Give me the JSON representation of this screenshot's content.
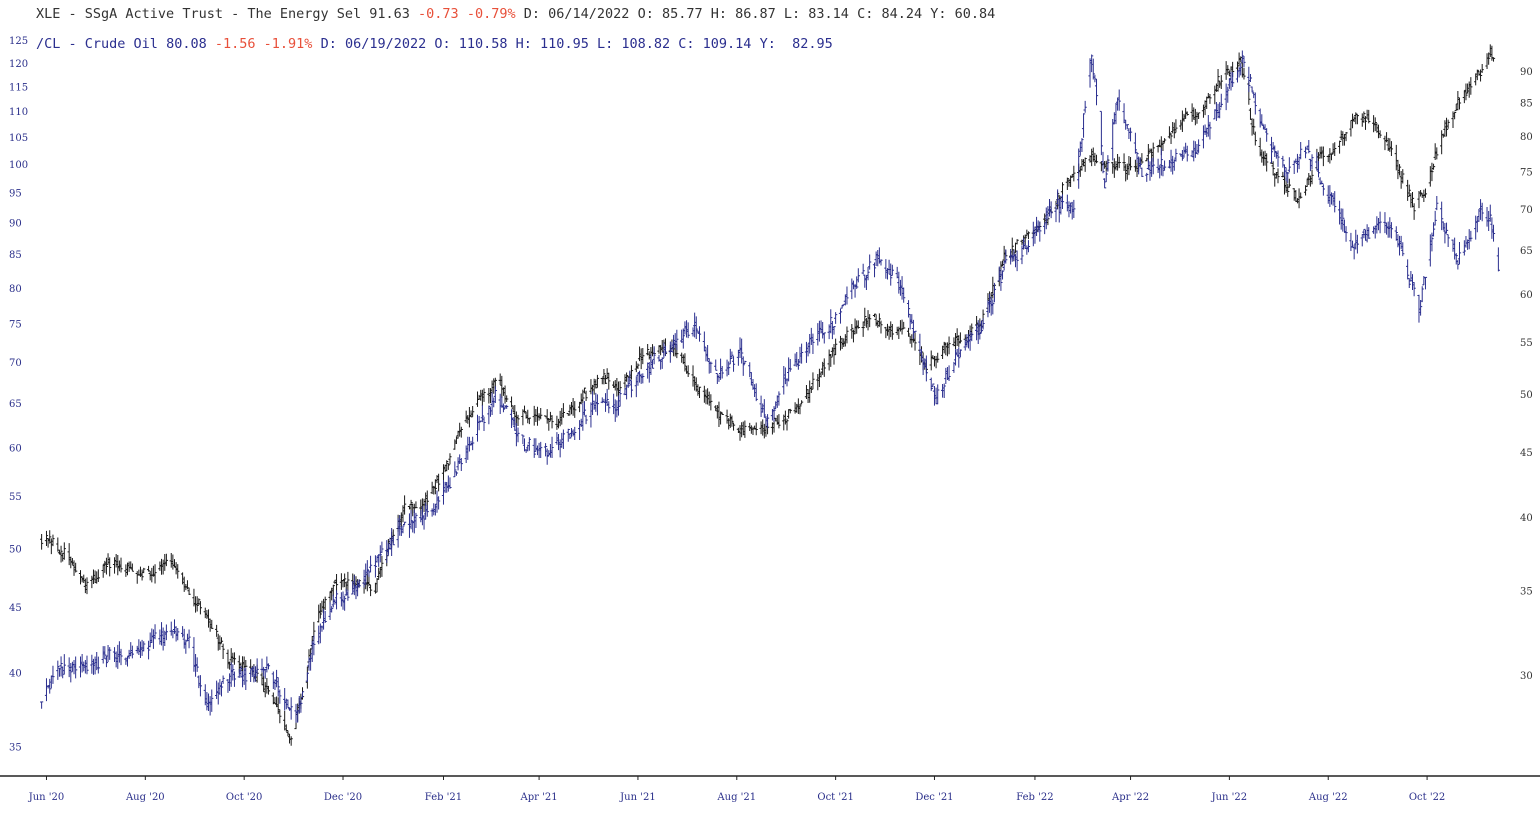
{
  "chart_data": {
    "type": "bar",
    "subtype": "ohlc",
    "legend": {
      "xle": {
        "symbol": "XLE",
        "name_prefix": "SSgA Active Trust - The Energy Sel",
        "last": "91.63",
        "change": "-0.73",
        "change_pct": "-0.79%",
        "date": "D: 06/14/2022",
        "open": "O: 85.77",
        "high": "H: 86.87",
        "low": "L: 83.14",
        "close": "C: 84.24",
        "y": "Y: 60.84"
      },
      "cl": {
        "symbol": "/CL",
        "name_prefix": "Crude Oil",
        "last": "80.08",
        "change": "-1.56",
        "change_pct": "-1.91%",
        "date": "D: 06/19/2022",
        "open": "O: 110.58",
        "high": "H: 110.95",
        "low": "L: 108.82",
        "close": "C: 109.14",
        "y": "Y:  82.95"
      }
    },
    "left_axis": {
      "scale": "log",
      "series": "/CL",
      "range": [
        33.5,
        128
      ],
      "ticks": [
        "125",
        "120",
        "115",
        "110",
        "105",
        "100",
        "95",
        "90",
        "85",
        "80",
        "75",
        "70",
        "65",
        "60",
        "55",
        "50",
        "45",
        "40",
        "35"
      ]
    },
    "right_axis": {
      "scale": "log",
      "series": "XLE",
      "range": [
        25.2,
        97.5
      ],
      "ticks": [
        "90",
        "85",
        "80",
        "75",
        "70",
        "65",
        "60",
        "55",
        "50",
        "45",
        "40",
        "35",
        "30"
      ]
    },
    "x_axis": {
      "ticks": [
        "Jun '20",
        "Aug '20",
        "Oct '20",
        "Dec '20",
        "Feb '21",
        "Apr '21",
        "Jun '21",
        "Aug '21",
        "Oct '21",
        "Dec '21",
        "Feb '22",
        "Apr '22",
        "Jun '22",
        "Aug '22",
        "Oct '22"
      ],
      "tick_dates": [
        "2020-06-01",
        "2020-08-01",
        "2020-10-01",
        "2020-12-01",
        "2021-02-01",
        "2021-04-01",
        "2021-06-01",
        "2021-08-01",
        "2021-10-01",
        "2021-12-01",
        "2022-02-01",
        "2022-04-01",
        "2022-06-01",
        "2022-08-01",
        "2022-10-01"
      ],
      "range": [
        "2020-05-28",
        "2022-11-15"
      ]
    },
    "series": [
      {
        "name": "XLE",
        "color": "#1a1a1a",
        "axis": "right",
        "points": [
          [
            "2020-05-29",
            38.6
          ],
          [
            "2020-06-08",
            37.9
          ],
          [
            "2020-06-16",
            37.0
          ],
          [
            "2020-06-25",
            35.2
          ],
          [
            "2020-07-08",
            36.7
          ],
          [
            "2020-07-22",
            36.5
          ],
          [
            "2020-08-05",
            36.2
          ],
          [
            "2020-08-14",
            37.2
          ],
          [
            "2020-08-28",
            34.8
          ],
          [
            "2020-09-08",
            33.6
          ],
          [
            "2020-09-21",
            30.8
          ],
          [
            "2020-10-01",
            30.6
          ],
          [
            "2020-10-15",
            29.3
          ],
          [
            "2020-10-30",
            26.6
          ],
          [
            "2020-11-06",
            29.2
          ],
          [
            "2020-11-16",
            33.5
          ],
          [
            "2020-11-26",
            35.6
          ],
          [
            "2020-12-07",
            35.4
          ],
          [
            "2020-12-21",
            35.3
          ],
          [
            "2021-01-08",
            41.0
          ],
          [
            "2021-01-19",
            40.8
          ],
          [
            "2021-02-01",
            43.6
          ],
          [
            "2021-02-12",
            47.0
          ],
          [
            "2021-02-23",
            49.9
          ],
          [
            "2021-03-08",
            51.1
          ],
          [
            "2021-03-19",
            47.9
          ],
          [
            "2021-03-30",
            48.5
          ],
          [
            "2021-04-12",
            47.4
          ],
          [
            "2021-04-26",
            49.7
          ],
          [
            "2021-05-10",
            51.8
          ],
          [
            "2021-05-21",
            50.7
          ],
          [
            "2021-06-04",
            53.8
          ],
          [
            "2021-06-14",
            54.5
          ],
          [
            "2021-06-25",
            54.4
          ],
          [
            "2021-07-09",
            50.4
          ],
          [
            "2021-07-21",
            48.3
          ],
          [
            "2021-08-03",
            46.9
          ],
          [
            "2021-08-17",
            46.9
          ],
          [
            "2021-08-31",
            48.0
          ],
          [
            "2021-09-14",
            50.2
          ],
          [
            "2021-09-28",
            54.1
          ],
          [
            "2021-10-11",
            56.1
          ],
          [
            "2021-10-22",
            57.6
          ],
          [
            "2021-11-05",
            56.3
          ],
          [
            "2021-11-16",
            55.8
          ],
          [
            "2021-11-26",
            52.7
          ],
          [
            "2021-12-06",
            54.3
          ],
          [
            "2021-12-17",
            55.2
          ],
          [
            "2021-12-30",
            57.0
          ],
          [
            "2022-01-13",
            64.3
          ],
          [
            "2022-01-26",
            66.4
          ],
          [
            "2022-02-09",
            69.4
          ],
          [
            "2022-02-23",
            74.7
          ],
          [
            "2022-03-08",
            77.1
          ],
          [
            "2022-03-21",
            75.7
          ],
          [
            "2022-04-04",
            75.6
          ],
          [
            "2022-04-18",
            78.3
          ],
          [
            "2022-05-02",
            82.3
          ],
          [
            "2022-05-16",
            84.4
          ],
          [
            "2022-05-27",
            89.2
          ],
          [
            "2022-06-08",
            91.6
          ],
          [
            "2022-06-17",
            79.3
          ],
          [
            "2022-06-30",
            74.7
          ],
          [
            "2022-07-14",
            71.4
          ],
          [
            "2022-07-26",
            76.8
          ],
          [
            "2022-08-08",
            79.1
          ],
          [
            "2022-08-18",
            83.6
          ],
          [
            "2022-08-29",
            82.2
          ],
          [
            "2022-09-09",
            77.6
          ],
          [
            "2022-09-23",
            70.5
          ],
          [
            "2022-09-30",
            72.7
          ],
          [
            "2022-10-11",
            81.0
          ],
          [
            "2022-10-21",
            85.7
          ],
          [
            "2022-11-02",
            89.9
          ],
          [
            "2022-11-10",
            93.4
          ],
          [
            "2022-11-14",
            91.6
          ]
        ]
      },
      {
        "name": "/CL",
        "color": "#2b2f8f",
        "axis": "left",
        "points": [
          [
            "2020-05-29",
            38.0
          ],
          [
            "2020-06-08",
            40.2
          ],
          [
            "2020-06-17",
            40.6
          ],
          [
            "2020-06-26",
            40.4
          ],
          [
            "2020-07-08",
            41.2
          ],
          [
            "2020-07-22",
            41.4
          ],
          [
            "2020-08-05",
            42.4
          ],
          [
            "2020-08-19",
            43.0
          ],
          [
            "2020-08-28",
            42.2
          ],
          [
            "2020-09-08",
            37.7
          ],
          [
            "2020-09-18",
            39.7
          ],
          [
            "2020-09-30",
            39.9
          ],
          [
            "2020-10-14",
            40.5
          ],
          [
            "2020-10-28",
            38.0
          ],
          [
            "2020-11-03",
            37.0
          ],
          [
            "2020-11-12",
            41.8
          ],
          [
            "2020-11-25",
            45.5
          ],
          [
            "2020-12-07",
            46.2
          ],
          [
            "2020-12-18",
            48.2
          ],
          [
            "2021-01-08",
            52.3
          ],
          [
            "2021-01-21",
            53.1
          ],
          [
            "2021-02-04",
            56.2
          ],
          [
            "2021-02-18",
            60.7
          ],
          [
            "2021-03-05",
            66.1
          ],
          [
            "2021-03-23",
            60.5
          ],
          [
            "2021-04-05",
            59.6
          ],
          [
            "2021-04-21",
            61.6
          ],
          [
            "2021-05-05",
            65.2
          ],
          [
            "2021-05-18",
            64.9
          ],
          [
            "2021-06-03",
            68.8
          ],
          [
            "2021-06-17",
            71.3
          ],
          [
            "2021-07-06",
            75.0
          ],
          [
            "2021-07-20",
            68.3
          ],
          [
            "2021-08-02",
            71.5
          ],
          [
            "2021-08-20",
            63.0
          ],
          [
            "2021-09-01",
            68.6
          ],
          [
            "2021-09-15",
            72.4
          ],
          [
            "2021-09-30",
            75.5
          ],
          [
            "2021-10-14",
            81.1
          ],
          [
            "2021-10-26",
            84.1
          ],
          [
            "2021-11-08",
            81.6
          ],
          [
            "2021-11-26",
            69.0
          ],
          [
            "2021-12-02",
            65.5
          ],
          [
            "2021-12-15",
            71.2
          ],
          [
            "2021-12-31",
            75.2
          ],
          [
            "2022-01-14",
            83.8
          ],
          [
            "2022-01-28",
            86.7
          ],
          [
            "2022-02-14",
            93.1
          ],
          [
            "2022-02-25",
            92.4
          ],
          [
            "2022-03-08",
            122.0
          ],
          [
            "2022-03-16",
            96.0
          ],
          [
            "2022-03-24",
            113.0
          ],
          [
            "2022-04-08",
            98.4
          ],
          [
            "2022-04-25",
            100.5
          ],
          [
            "2022-05-10",
            102.2
          ],
          [
            "2022-05-25",
            110.3
          ],
          [
            "2022-06-09",
            121.5
          ],
          [
            "2022-06-22",
            106.2
          ],
          [
            "2022-07-06",
            98.6
          ],
          [
            "2022-07-18",
            102.9
          ],
          [
            "2022-08-02",
            94.4
          ],
          [
            "2022-08-16",
            86.5
          ],
          [
            "2022-09-01",
            89.8
          ],
          [
            "2022-09-12",
            87.9
          ],
          [
            "2022-09-26",
            77.0
          ],
          [
            "2022-10-07",
            92.6
          ],
          [
            "2022-10-20",
            84.4
          ],
          [
            "2022-11-04",
            92.6
          ],
          [
            "2022-11-12",
            88.9
          ],
          [
            "2022-11-15",
            80.1
          ]
        ]
      }
    ]
  }
}
